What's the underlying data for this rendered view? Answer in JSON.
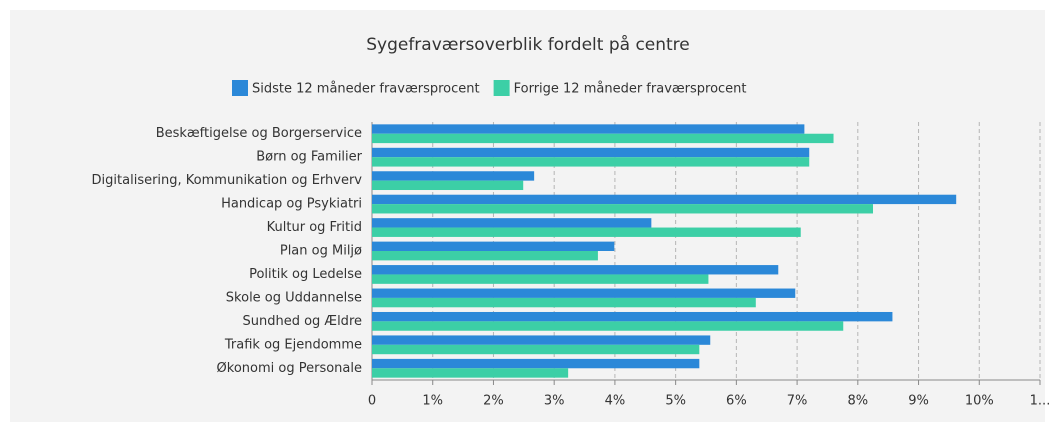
{
  "chart_data": {
    "type": "hbar",
    "title": "Sygefraværsoverblik fordelt på centre",
    "categories": [
      "Beskæftigelse og Borgerservice",
      "Børn og Familier",
      "Digitalisering, Kommunikation og Erhverv",
      "Handicap og Psykiatri",
      "Kultur og Fritid",
      "Plan og Miljø",
      "Politik og Ledelse",
      "Skole og Uddannelse",
      "Sundhed og Ældre",
      "Trafik og Ejendomme",
      "Økonomi og Personale"
    ],
    "series": [
      {
        "name": "Sidste 12 måneder fraværsprocent",
        "color": "#2b88d8",
        "values": [
          7.12,
          7.2,
          2.67,
          9.62,
          4.6,
          3.99,
          6.69,
          6.97,
          8.57,
          5.57,
          5.39
        ]
      },
      {
        "name": "Forrige 12 måneder fraværsprocent",
        "color": "#3ccfa6",
        "values": [
          7.6,
          7.2,
          2.49,
          8.25,
          7.06,
          3.72,
          5.54,
          6.32,
          7.76,
          5.39,
          3.23
        ]
      }
    ],
    "xlim": [
      0,
      11
    ],
    "xticks": [
      0,
      {
        "value": 1,
        "label": "1%"
      },
      {
        "value": 2,
        "label": "2%"
      },
      {
        "value": 3,
        "label": "3%"
      },
      {
        "value": 4,
        "label": "4%"
      },
      {
        "value": 5,
        "label": "5%"
      },
      {
        "value": 6,
        "label": "6%"
      },
      {
        "value": 7,
        "label": "7%"
      },
      {
        "value": 8,
        "label": "8%"
      },
      {
        "value": 9,
        "label": "9%"
      },
      {
        "value": 10,
        "label": "10%"
      },
      {
        "value": 11,
        "label": "1..."
      }
    ],
    "grid": true
  }
}
